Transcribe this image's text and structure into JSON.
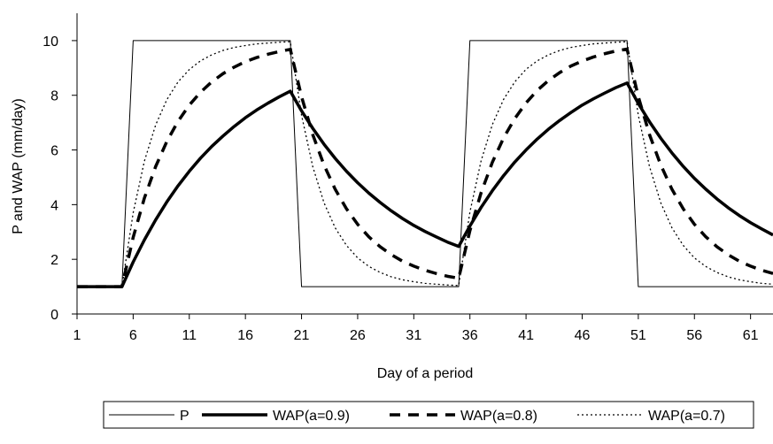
{
  "chart_data": {
    "type": "line",
    "xlabel": "Day of a period",
    "ylabel": "P and WAP  (mm/day)",
    "xlim": [
      1,
      63
    ],
    "ylim": [
      0,
      11
    ],
    "x_ticks": [
      1,
      6,
      11,
      16,
      21,
      26,
      31,
      36,
      41,
      46,
      51,
      56,
      61
    ],
    "y_ticks": [
      0,
      2,
      4,
      6,
      8,
      10
    ],
    "legend_position": "bottom",
    "series": [
      {
        "name": "P",
        "style": "thin-solid",
        "x": [
          1,
          5,
          6,
          20,
          21,
          35,
          36,
          50,
          51,
          63
        ],
        "y": [
          1,
          1,
          10,
          10,
          1,
          1,
          10,
          10,
          1,
          1
        ]
      },
      {
        "name": "WAP(a=0.9)",
        "style": "thick-solid",
        "x": [
          1,
          2,
          3,
          4,
          5,
          6,
          7,
          8,
          9,
          10,
          11,
          12,
          13,
          14,
          15,
          16,
          17,
          18,
          19,
          20,
          21,
          22,
          23,
          24,
          25,
          26,
          27,
          28,
          29,
          30,
          31,
          32,
          33,
          34,
          35,
          36,
          37,
          38,
          39,
          40,
          41,
          42,
          43,
          44,
          45,
          46,
          47,
          48,
          49,
          50,
          51,
          52,
          53,
          54,
          55,
          56,
          57,
          58,
          59,
          60,
          61,
          62,
          63
        ],
        "y": [
          1,
          1,
          1,
          1,
          1,
          1.9,
          2.71,
          3.44,
          4.1,
          4.69,
          5.22,
          5.7,
          6.13,
          6.51,
          6.86,
          7.18,
          7.46,
          7.71,
          7.94,
          8.15,
          7.43,
          6.79,
          6.21,
          5.69,
          5.22,
          4.8,
          4.42,
          4.08,
          3.77,
          3.49,
          3.24,
          3.02,
          2.82,
          2.63,
          2.47,
          3.22,
          3.9,
          4.51,
          5.06,
          5.56,
          6.0,
          6.4,
          6.76,
          7.08,
          7.37,
          7.64,
          7.87,
          8.08,
          8.28,
          8.45,
          7.7,
          7.03,
          6.43,
          5.89,
          5.4,
          4.96,
          4.57,
          4.21,
          3.89,
          3.6,
          3.34,
          3.11,
          2.89
        ]
      },
      {
        "name": "WAP(a=0.8)",
        "style": "thick-dashed",
        "x": [
          1,
          2,
          3,
          4,
          5,
          6,
          7,
          8,
          9,
          10,
          11,
          12,
          13,
          14,
          15,
          16,
          17,
          18,
          19,
          20,
          21,
          22,
          23,
          24,
          25,
          26,
          27,
          28,
          29,
          30,
          31,
          32,
          33,
          34,
          35,
          36,
          37,
          38,
          39,
          40,
          41,
          42,
          43,
          44,
          45,
          46,
          47,
          48,
          49,
          50,
          51,
          52,
          53,
          54,
          55,
          56,
          57,
          58,
          59,
          60,
          61,
          62,
          63
        ],
        "y": [
          1,
          1,
          1,
          1,
          1,
          2.8,
          4.24,
          5.39,
          6.31,
          7.05,
          7.64,
          8.11,
          8.49,
          8.79,
          9.03,
          9.23,
          9.38,
          9.5,
          9.6,
          9.68,
          7.95,
          6.56,
          5.45,
          4.56,
          3.85,
          3.28,
          2.82,
          2.46,
          2.17,
          1.93,
          1.75,
          1.6,
          1.48,
          1.38,
          1.31,
          3.05,
          4.44,
          5.55,
          6.44,
          7.15,
          7.72,
          8.18,
          8.54,
          8.83,
          9.07,
          9.25,
          9.4,
          9.52,
          9.62,
          9.69,
          7.95,
          6.56,
          5.45,
          4.56,
          3.85,
          3.28,
          2.83,
          2.46,
          2.17,
          1.93,
          1.75,
          1.6,
          1.48
        ]
      },
      {
        "name": "WAP(a=0.7)",
        "style": "thin-dotted",
        "x": [
          1,
          2,
          3,
          4,
          5,
          6,
          7,
          8,
          9,
          10,
          11,
          12,
          13,
          14,
          15,
          16,
          17,
          18,
          19,
          20,
          21,
          22,
          23,
          24,
          25,
          26,
          27,
          28,
          29,
          30,
          31,
          32,
          33,
          34,
          35,
          36,
          37,
          38,
          39,
          40,
          41,
          42,
          43,
          44,
          45,
          46,
          47,
          48,
          49,
          50,
          51,
          52,
          53,
          54,
          55,
          56,
          57,
          58,
          59,
          60,
          61,
          62,
          63
        ],
        "y": [
          1,
          1,
          1,
          1,
          1,
          3.7,
          5.59,
          6.91,
          7.84,
          8.49,
          8.94,
          9.26,
          9.48,
          9.64,
          9.75,
          9.82,
          9.88,
          9.91,
          9.94,
          9.96,
          7.27,
          5.39,
          4.07,
          3.15,
          2.51,
          2.05,
          1.74,
          1.52,
          1.36,
          1.25,
          1.18,
          1.12,
          1.09,
          1.06,
          1.04,
          3.73,
          5.61,
          6.93,
          7.85,
          8.49,
          8.95,
          9.26,
          9.48,
          9.64,
          9.75,
          9.82,
          9.88,
          9.91,
          9.94,
          9.96,
          7.27,
          5.39,
          4.07,
          3.15,
          2.51,
          2.05,
          1.74,
          1.52,
          1.36,
          1.25,
          1.18,
          1.12,
          1.09
        ]
      }
    ]
  }
}
